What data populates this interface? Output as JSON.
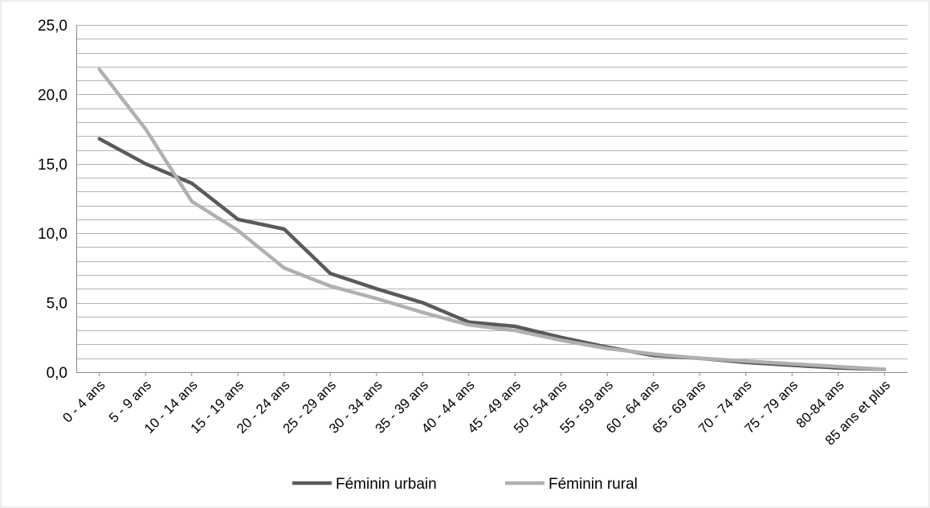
{
  "chart_data": {
    "type": "line",
    "title": "",
    "xlabel": "",
    "ylabel": "",
    "categories": [
      "0 - 4 ans",
      "5 - 9 ans",
      "10 - 14 ans",
      "15 - 19 ans",
      "20 - 24 ans",
      "25 - 29 ans",
      "30 - 34 ans",
      "35 - 39 ans",
      "40 - 44 ans",
      "45 - 49 ans",
      "50 - 54 ans",
      "55 - 59 ans",
      "60 - 64 ans",
      "65 - 69 ans",
      "70 - 74 ans",
      "75 - 79 ans",
      "80-84 ans",
      "85 ans et plus"
    ],
    "y_ticks": [
      "0,0",
      "5,0",
      "10,0",
      "15,0",
      "20,0",
      "25,0"
    ],
    "ylim": [
      0,
      25
    ],
    "y_major_step": 5,
    "y_minor_step": 1,
    "grid": true,
    "legend_position": "bottom",
    "series": [
      {
        "name": "Féminin urbain",
        "color": "#5a5a5a",
        "values": [
          16.8,
          15.0,
          13.6,
          11.0,
          10.3,
          7.1,
          6.0,
          5.0,
          3.6,
          3.3,
          2.5,
          1.8,
          1.2,
          1.0,
          0.7,
          0.5,
          0.3,
          0.2
        ]
      },
      {
        "name": "Féminin rural",
        "color": "#b0b0b0",
        "values": [
          21.8,
          17.5,
          12.3,
          10.2,
          7.5,
          6.2,
          5.3,
          4.3,
          3.4,
          3.0,
          2.3,
          1.7,
          1.3,
          1.0,
          0.8,
          0.6,
          0.4,
          0.2
        ]
      }
    ]
  }
}
